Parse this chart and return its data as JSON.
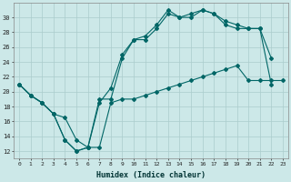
{
  "xlabel": "Humidex (Indice chaleur)",
  "bg_color": "#cce8e8",
  "grid_color": "#aacccc",
  "line_color": "#006666",
  "xlim": [
    -0.5,
    23.5
  ],
  "ylim": [
    11,
    32
  ],
  "yticks": [
    12,
    14,
    16,
    18,
    20,
    22,
    24,
    26,
    28,
    30
  ],
  "xticks": [
    0,
    1,
    2,
    3,
    4,
    5,
    6,
    7,
    8,
    9,
    10,
    11,
    12,
    13,
    14,
    15,
    16,
    17,
    18,
    19,
    20,
    21,
    22,
    23
  ],
  "line_a_x": [
    0,
    1,
    2,
    3,
    4,
    5,
    6,
    7,
    8,
    9,
    10,
    11,
    12,
    13,
    14,
    15,
    16,
    17,
    18,
    19,
    20,
    21,
    22
  ],
  "line_a_y": [
    21.0,
    19.5,
    18.5,
    17.0,
    13.5,
    12.0,
    12.5,
    18.5,
    20.5,
    25.0,
    27.0,
    27.5,
    29.0,
    31.0,
    30.0,
    30.0,
    31.0,
    30.5,
    29.0,
    28.5,
    28.5,
    28.5,
    21.0
  ],
  "line_b_x": [
    0,
    1,
    2,
    3,
    4,
    5,
    6,
    7,
    8,
    9,
    10,
    11,
    12,
    13,
    14,
    15,
    16,
    17,
    18,
    19,
    20,
    21,
    22
  ],
  "line_b_y": [
    21.0,
    19.5,
    18.5,
    17.0,
    13.5,
    12.0,
    12.5,
    19.0,
    19.0,
    24.5,
    27.0,
    27.0,
    28.5,
    30.5,
    30.0,
    30.5,
    31.0,
    30.5,
    29.5,
    29.0,
    28.5,
    28.5,
    24.5
  ],
  "line_c_x": [
    0,
    1,
    2,
    3,
    4,
    5,
    6,
    7,
    8,
    9,
    10,
    11,
    12,
    13,
    14,
    15,
    16,
    17,
    18,
    19,
    20,
    21,
    22,
    23
  ],
  "line_c_y": [
    21.0,
    19.5,
    18.5,
    17.0,
    16.5,
    13.5,
    12.5,
    12.5,
    18.5,
    19.0,
    19.0,
    19.5,
    20.0,
    20.5,
    21.0,
    21.5,
    22.0,
    22.5,
    23.0,
    23.5,
    21.5,
    21.5,
    21.5,
    21.5
  ]
}
